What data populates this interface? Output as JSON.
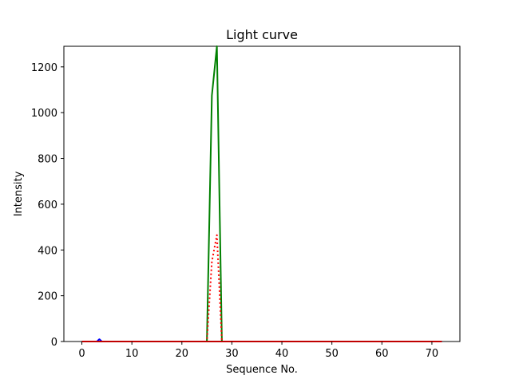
{
  "chart_data": {
    "type": "line",
    "title": "Light curve",
    "xlabel": "Sequence No.",
    "ylabel": "Intensity",
    "xlim": [
      -3.6,
      75.6
    ],
    "ylim": [
      0,
      1290
    ],
    "xticks": [
      0,
      10,
      20,
      30,
      40,
      50,
      60,
      70
    ],
    "yticks": [
      0,
      200,
      400,
      600,
      800,
      1000,
      1200
    ],
    "grid": false,
    "series": [
      {
        "color": "#008000",
        "style": "solid",
        "x": [
          0,
          24,
          25,
          26,
          27,
          28,
          29,
          72
        ],
        "y": [
          0,
          0,
          0,
          1075,
          1290,
          0,
          0,
          0
        ]
      },
      {
        "color": "#ff0000",
        "style": "dotted",
        "x": [
          0,
          24,
          25,
          26,
          27,
          28,
          29,
          72
        ],
        "y": [
          0,
          0,
          0,
          350,
          465,
          0,
          0,
          0
        ]
      },
      {
        "color": "#0000ff",
        "style": "solid",
        "x": [
          0,
          3,
          3.5,
          4,
          72
        ],
        "y": [
          0,
          0,
          10,
          0,
          0
        ]
      },
      {
        "color": "#c00000",
        "style": "solid",
        "x": [
          0,
          72
        ],
        "y": [
          0,
          0
        ]
      }
    ]
  }
}
